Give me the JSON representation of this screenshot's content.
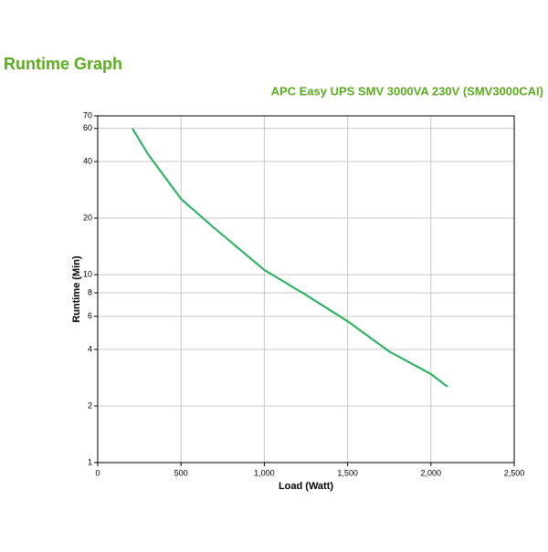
{
  "chart_data": {
    "type": "line",
    "title": "Runtime Graph",
    "subtitle": "APC Easy UPS SMV 3000VA 230V (SMV3000CAI)",
    "x_label": "Load (Watt)",
    "y_label": "Runtime (Min)",
    "x": [
      208,
      300,
      500,
      700,
      1000,
      1250,
      1500,
      1750,
      2000,
      2100
    ],
    "series": [
      {
        "name": "Runtime",
        "color": "#22b05a",
        "values": [
          60,
          44,
          25.3,
          17.7,
          10.6,
          7.8,
          5.65,
          3.9,
          2.96,
          2.53
        ]
      }
    ],
    "xlim": [
      0,
      2500
    ],
    "xticks": [
      0,
      500,
      {
        "value": 1000,
        "label": "1,000"
      },
      {
        "value": 1500,
        "label": "1,500"
      },
      {
        "value": 2000,
        "label": "2,000"
      },
      {
        "value": 2500,
        "label": "2,500"
      }
    ],
    "ylim": [
      1,
      70
    ],
    "yticks": [
      1,
      2,
      4,
      6,
      8,
      10,
      20,
      40,
      60,
      70
    ],
    "y_scale": "log",
    "grid": true,
    "title_color": "#5aab1e"
  }
}
